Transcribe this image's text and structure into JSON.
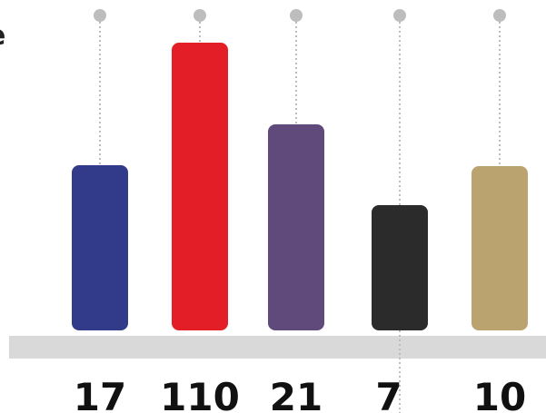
{
  "cropped_heading_fragment": "e",
  "chart_data": {
    "type": "bar",
    "title": "",
    "xlabel": "",
    "ylabel": "",
    "categories": [
      "",
      "",
      "",
      "",
      ""
    ],
    "values": [
      17,
      110,
      21,
      7,
      10
    ],
    "value_labels": [
      "17",
      "110",
      "21",
      "7",
      "10"
    ],
    "colors": [
      "#323B8A",
      "#E31E26",
      "#604A7C",
      "#2B2B2B",
      "#BBA36F"
    ],
    "baseline_color": "#D9D9D9",
    "stem_color": "#BDBDBD",
    "marker_color": "#BDBDBD",
    "grid": false,
    "legend": "none"
  }
}
